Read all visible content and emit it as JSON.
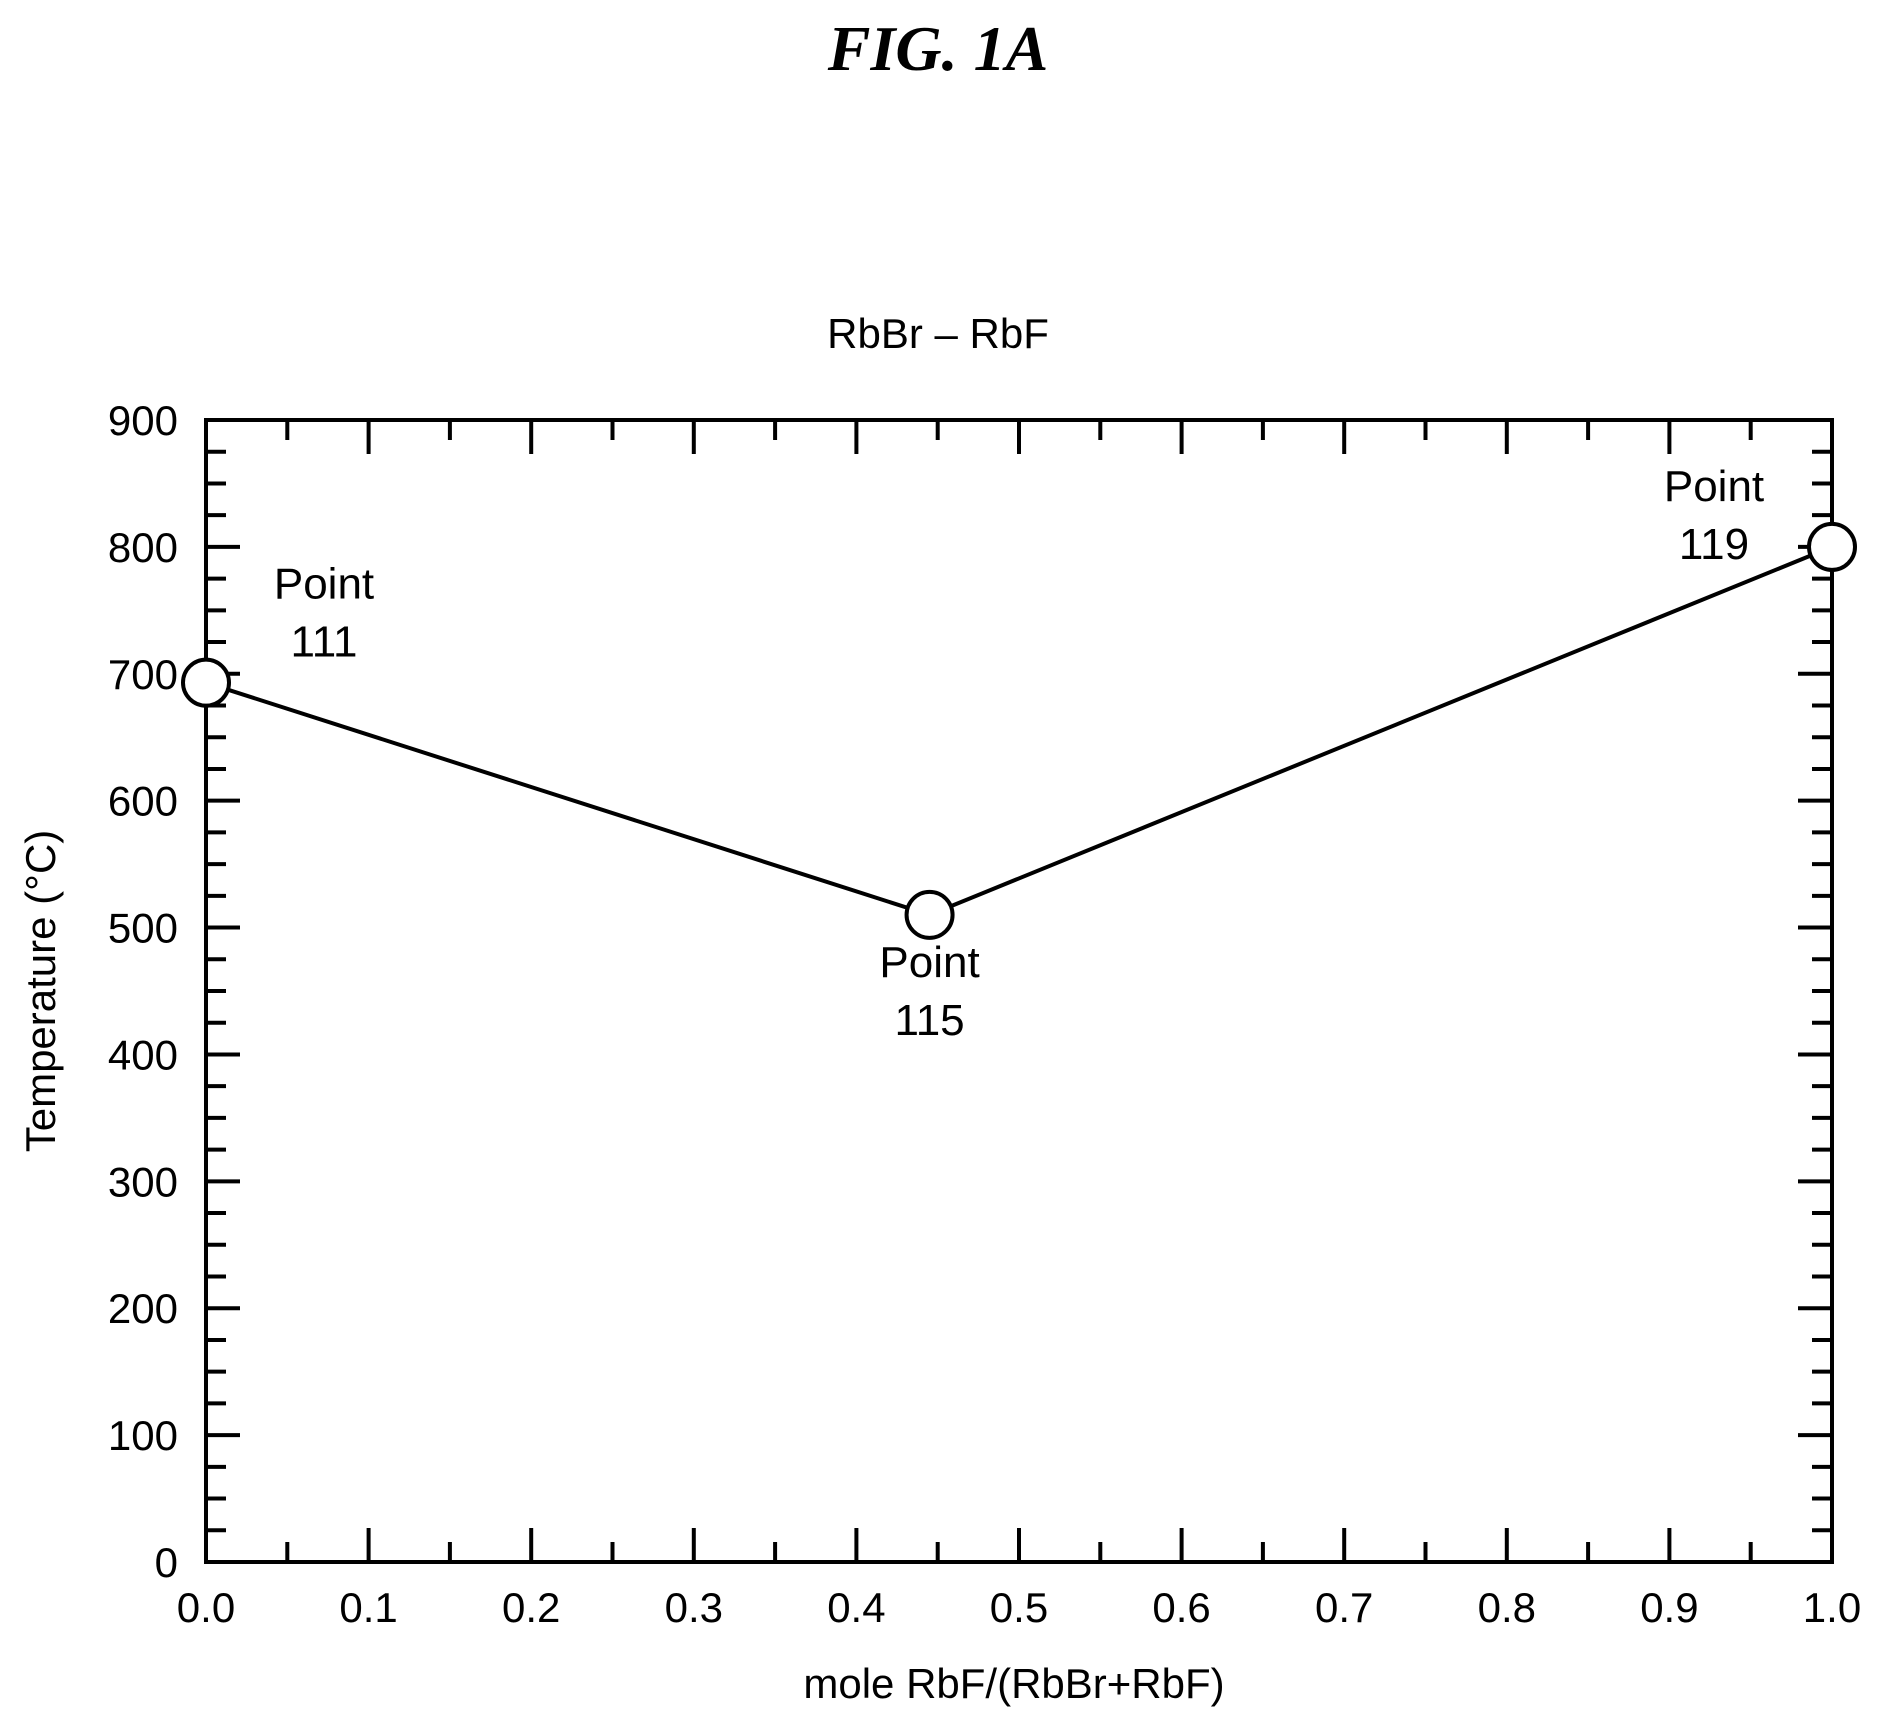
{
  "figure_label": "FIG. 1A",
  "chart_data": {
    "type": "line",
    "title": "RbBr – RbF",
    "xlabel": "mole RbF/(RbBr+RbF)",
    "ylabel": "Temperature (°C)",
    "xlim": [
      0.0,
      1.0
    ],
    "ylim": [
      0,
      900
    ],
    "x_ticks": [
      "0.0",
      "0.1",
      "0.2",
      "0.3",
      "0.4",
      "0.5",
      "0.6",
      "0.7",
      "0.8",
      "0.9",
      "1.0"
    ],
    "y_ticks": [
      "0",
      "100",
      "200",
      "300",
      "400",
      "500",
      "600",
      "700",
      "800",
      "900"
    ],
    "grid": false,
    "series": [
      {
        "x": [
          0.0,
          0.445,
          1.0
        ],
        "y": [
          693,
          510,
          800
        ]
      }
    ],
    "annotations": [
      {
        "point_index": 0,
        "line1": "Point",
        "line2": "111"
      },
      {
        "point_index": 1,
        "line1": "Point",
        "line2": "115"
      },
      {
        "point_index": 2,
        "line1": "Point",
        "line2": "119"
      }
    ]
  }
}
